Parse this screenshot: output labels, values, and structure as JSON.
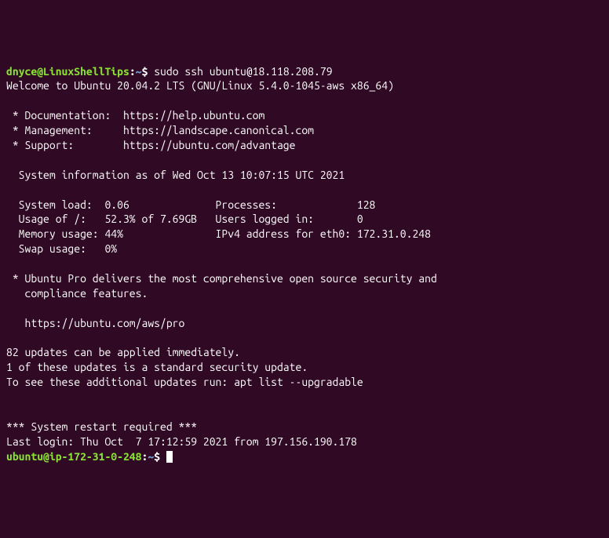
{
  "colors": {
    "background": "#300a24",
    "text": "#ffffff",
    "prompt_user": "#8ae234",
    "prompt_path": "#729fcf"
  },
  "prompt1": {
    "user_host": "dnyce@LinuxShellTips",
    "colon": ":",
    "path": "~",
    "dollar": "$ ",
    "command": "sudo ssh ubuntu@18.118.208.79"
  },
  "welcome": "Welcome to Ubuntu 20.04.2 LTS (GNU/Linux 5.4.0-1045-aws x86_64)",
  "links": {
    "doc": " * Documentation:  https://help.ubuntu.com",
    "mgmt": " * Management:     https://landscape.canonical.com",
    "sup": " * Support:        https://ubuntu.com/advantage"
  },
  "sysinfo_header": "  System information as of Wed Oct 13 10:07:15 UTC 2021",
  "sysinfo": {
    "l1": "  System load:  0.06              Processes:             128",
    "l2": "  Usage of /:   52.3% of 7.69GB   Users logged in:       0",
    "l3": "  Memory usage: 44%               IPv4 address for eth0: 172.31.0.248",
    "l4": "  Swap usage:   0%"
  },
  "pro": {
    "l1": " * Ubuntu Pro delivers the most comprehensive open source security and",
    "l2": "   compliance features.",
    "l3": "   https://ubuntu.com/aws/pro"
  },
  "updates": {
    "l1": "82 updates can be applied immediately.",
    "l2": "1 of these updates is a standard security update.",
    "l3": "To see these additional updates run: apt list --upgradable"
  },
  "restart": "*** System restart required ***",
  "lastlogin": "Last login: Thu Oct  7 17:12:59 2021 from 197.156.190.178",
  "prompt2": {
    "user_host": "ubuntu@ip-172-31-0-248",
    "colon": ":",
    "path": "~",
    "dollar": "$ "
  }
}
